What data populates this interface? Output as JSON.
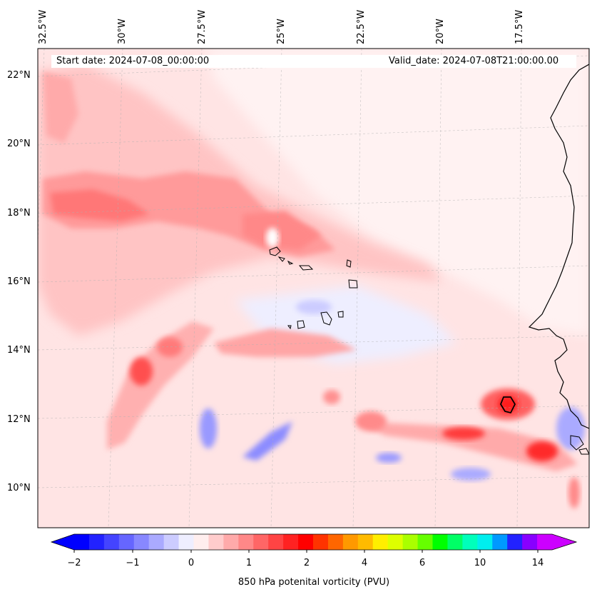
{
  "map": {
    "start_date": "Start date: 2024-07-08_00:00:00",
    "valid_date": "Valid_date: 2024-07-08T21:00:00.00",
    "longitude_labels": [
      "32.5°W",
      "30°W",
      "27.5°W",
      "25°W",
      "22.5°W",
      "20°W",
      "17.5°W"
    ],
    "latitude_labels": [
      "22°N",
      "20°N",
      "18°N",
      "16°N",
      "14°N",
      "12°N",
      "10°N"
    ],
    "projection": "lambert-like",
    "gridlines": true
  },
  "colorbar": {
    "title": "850 hPa potenital vorticity (PVU)",
    "tick_labels": [
      "−2",
      "−1",
      "0",
      "1",
      "2",
      "4",
      "6",
      "10",
      "14"
    ],
    "tick_values": [
      -2,
      -1,
      0,
      1,
      2,
      4,
      6,
      10,
      14
    ],
    "extend": "both",
    "colors": [
      "#0000ff",
      "#2222ff",
      "#4444ff",
      "#6666ff",
      "#8888ff",
      "#aaaaff",
      "#ccccff",
      "#eeeeff",
      "#ffeeee",
      "#ffcccc",
      "#ffaaaa",
      "#ff8888",
      "#ff6666",
      "#ff4444",
      "#ff2222",
      "#ff0000",
      "#ff3300",
      "#ff6600",
      "#ff9900",
      "#ffbb00",
      "#ffee00",
      "#ddff00",
      "#aaff00",
      "#66ff00",
      "#00ff00",
      "#00ff66",
      "#00ffbb",
      "#00eeee",
      "#0099ff",
      "#2222ff",
      "#8800ff",
      "#cc00ff"
    ]
  }
}
